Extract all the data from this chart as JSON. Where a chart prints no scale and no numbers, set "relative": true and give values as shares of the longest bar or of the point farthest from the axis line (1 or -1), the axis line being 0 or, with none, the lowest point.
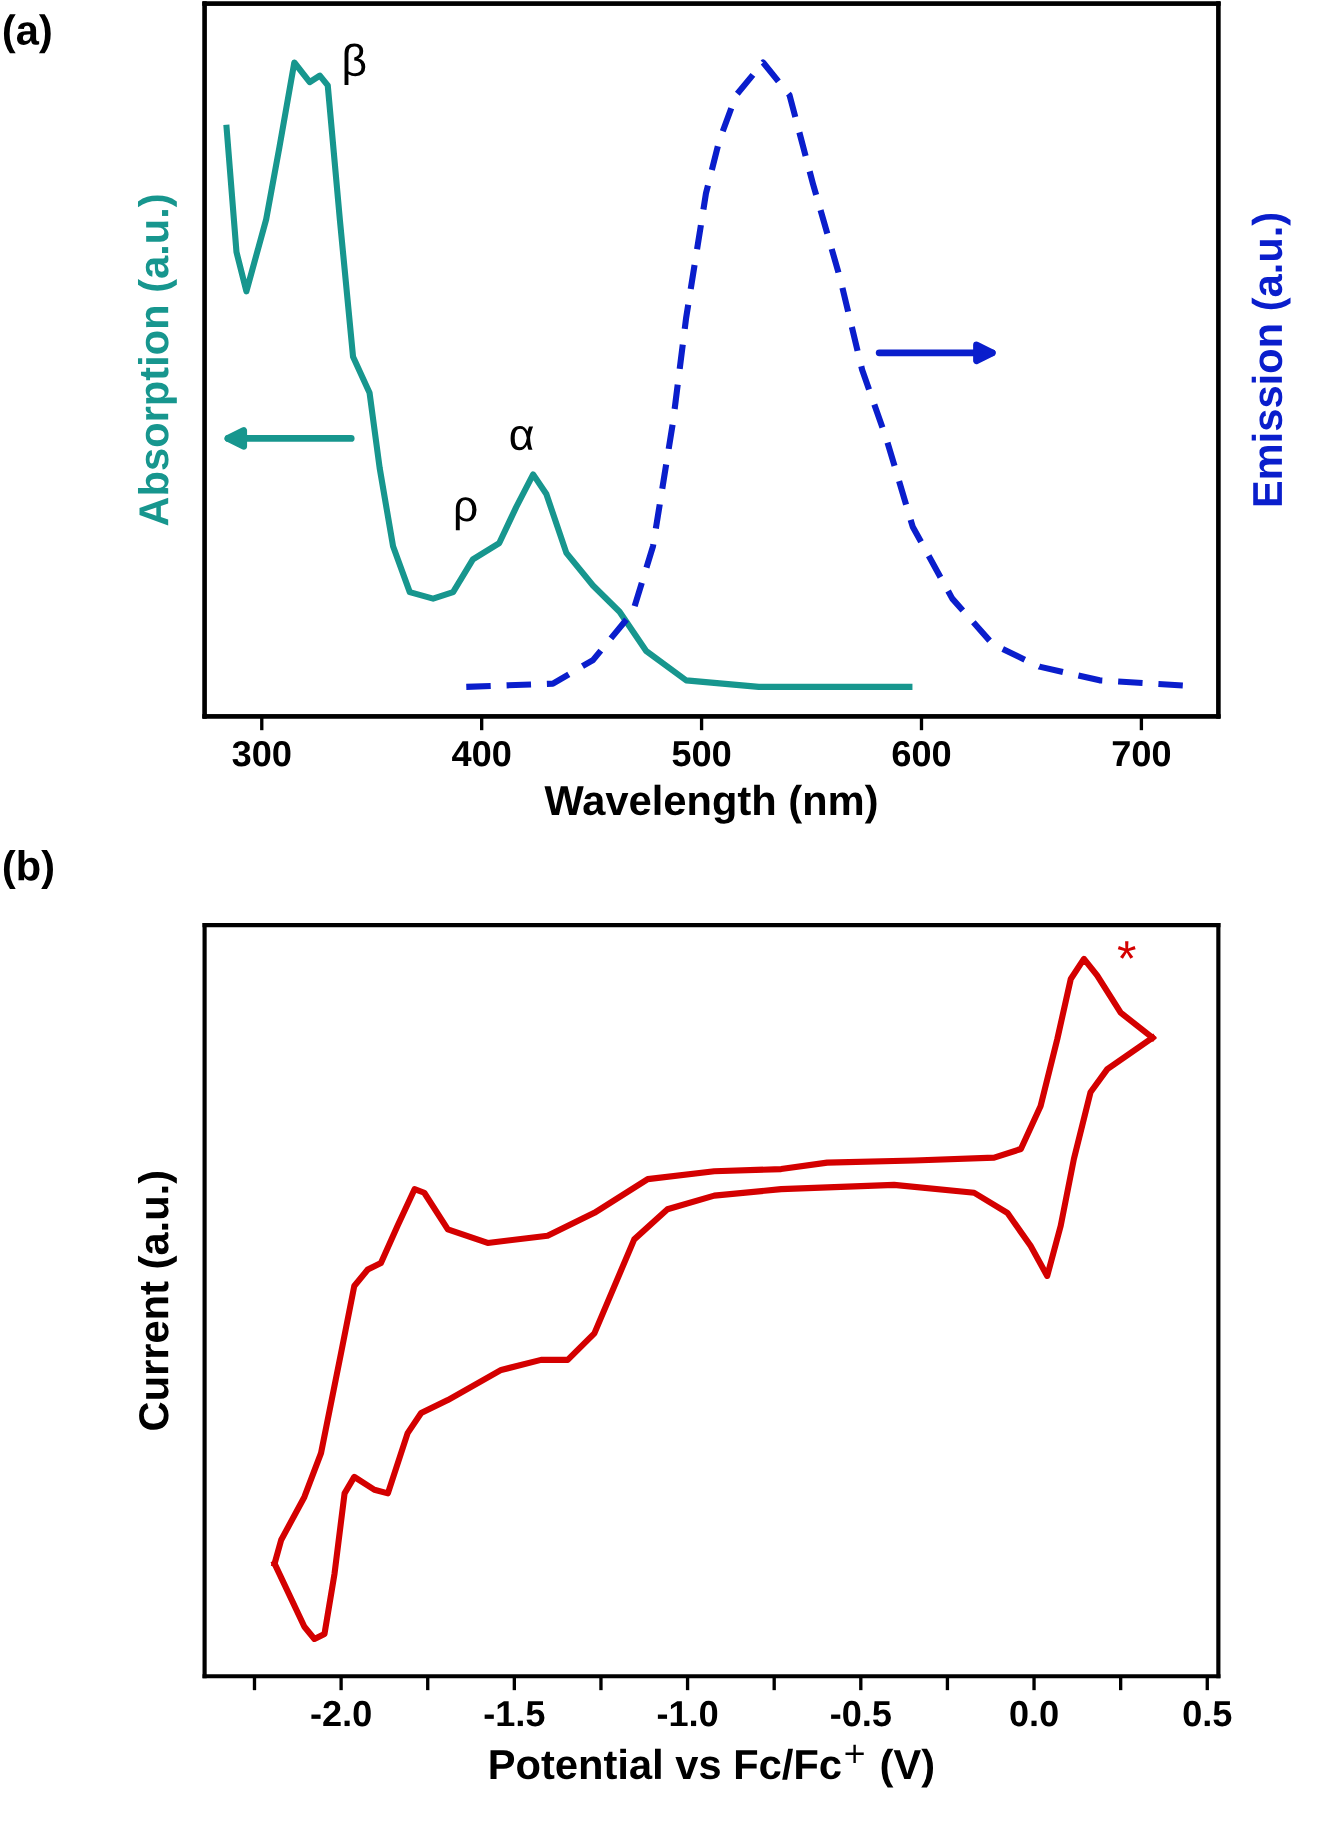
{
  "chart_data": [
    {
      "type": "line",
      "title": "(a)",
      "xlabel": "Wavelength (nm)",
      "ylabel": "Absorption (a.u.)",
      "y2label": "Emission (a.u.)",
      "relative": true,
      "tick_labels": "x",
      "grid": false,
      "xlim": [
        274,
        735
      ],
      "xticks": [
        300,
        400,
        500,
        600,
        700
      ],
      "series": [
        {
          "color": "#17968e",
          "line_style": "solid",
          "x": [
            284,
            288.5,
            293,
            302,
            308,
            314.8,
            321.8,
            326.4,
            330,
            335.5,
            341.5,
            349,
            353.6,
            359.7,
            367.3,
            377.9,
            387,
            396,
            408,
            415.7,
            423.4,
            429.4,
            438.5,
            450.6,
            462.7,
            474.8,
            493,
            526,
            594.5
          ],
          "values": [
            0.9,
            0.71,
            0.65,
            0.76,
            0.87,
            1.0,
            0.97,
            0.98,
            0.965,
            0.76,
            0.55,
            0.495,
            0.38,
            0.26,
            0.19,
            0.18,
            0.19,
            0.24,
            0.265,
            0.32,
            0.37,
            0.34,
            0.25,
            0.2,
            0.16,
            0.1,
            0.055,
            0.045,
            0.045
          ]
        },
        {
          "color": "#0a1ecc",
          "line_style": "dashed",
          "axis": "y2",
          "x": [
            393,
            432.4,
            450.6,
            468.8,
            477.9,
            487,
            493,
            502,
            508,
            515.7,
            528,
            540,
            550.6,
            563,
            573,
            584,
            596,
            614,
            632.5,
            653.6,
            681,
            719
          ],
          "values": [
            0.045,
            0.05,
            0.086,
            0.16,
            0.26,
            0.45,
            0.61,
            0.8,
            0.88,
            0.95,
            1.0,
            0.95,
            0.815,
            0.67,
            0.53,
            0.425,
            0.29,
            0.18,
            0.11,
            0.076,
            0.055,
            0.047
          ]
        }
      ],
      "annotations": [
        "β",
        "ρ",
        "α"
      ]
    },
    {
      "type": "line",
      "title": "(b)",
      "xlabel": "Potential vs Fc/Fc$^{+}$ (V)",
      "ylabel": "Current (a.u.)",
      "relative": true,
      "tick_labels": "x",
      "grid": false,
      "xlim": [
        -2.394,
        0.532
      ],
      "xticks": [
        {
          "value": -2.25,
          "label": null
        },
        {
          "value": -2.0,
          "label": "-2.0"
        },
        {
          "value": -1.75,
          "label": null
        },
        {
          "value": -1.5,
          "label": "-1.5"
        },
        {
          "value": -1.25,
          "label": null
        },
        {
          "value": -1.0,
          "label": "-1.0"
        },
        {
          "value": -0.75,
          "label": null
        },
        {
          "value": -0.5,
          "label": "-0.5"
        },
        {
          "value": -0.25,
          "label": null
        },
        {
          "value": 0.0,
          "label": "0.0"
        },
        {
          "value": 0.25,
          "label": null
        },
        {
          "value": 0.5,
          "label": "0.5"
        }
      ],
      "series": [
        {
          "color": "#d40000",
          "line_style": "solid",
          "x": [
            0.342,
            0.211,
            0.163,
            0.115,
            0.077,
            0.038,
            -0.01,
            -0.077,
            -0.173,
            -0.404,
            -0.73,
            -0.923,
            -1.058,
            -1.154,
            -1.269,
            -1.346,
            -1.423,
            -1.538,
            -1.692,
            -1.769,
            -1.808,
            -1.865,
            -1.904,
            -1.962,
            -1.99,
            -2.019,
            -2.048,
            -2.077,
            -2.106,
            -2.192
          ],
          "values": [
            0.89,
            0.846,
            0.814,
            0.721,
            0.628,
            0.558,
            0.6,
            0.646,
            0.674,
            0.685,
            0.679,
            0.67,
            0.651,
            0.609,
            0.478,
            0.441,
            0.441,
            0.427,
            0.385,
            0.367,
            0.339,
            0.255,
            0.26,
            0.278,
            0.255,
            0.143,
            0.059,
            0.052,
            0.069,
            0.157
          ]
        },
        {
          "color": "#d40000",
          "line_style": "solid",
          "x": [
            -2.192,
            -2.173,
            -2.106,
            -2.058,
            -2.0,
            -1.962,
            -1.923,
            -1.885,
            -1.837,
            -1.788,
            -1.76,
            -1.692,
            -1.577,
            -1.404,
            -1.269,
            -1.115,
            -0.923,
            -0.73,
            -0.597,
            -0.346,
            -0.115,
            -0.038,
            0.019,
            0.067,
            0.106,
            0.144,
            0.182,
            0.25,
            0.342
          ],
          "values": [
            0.157,
            0.19,
            0.25,
            0.311,
            0.451,
            0.544,
            0.567,
            0.576,
            0.628,
            0.679,
            0.674,
            0.623,
            0.604,
            0.614,
            0.646,
            0.693,
            0.704,
            0.707,
            0.716,
            0.719,
            0.723,
            0.735,
            0.795,
            0.888,
            0.972,
            1.0,
            0.977,
            0.925,
            0.89
          ]
        }
      ],
      "annotations": [
        "*"
      ]
    }
  ]
}
